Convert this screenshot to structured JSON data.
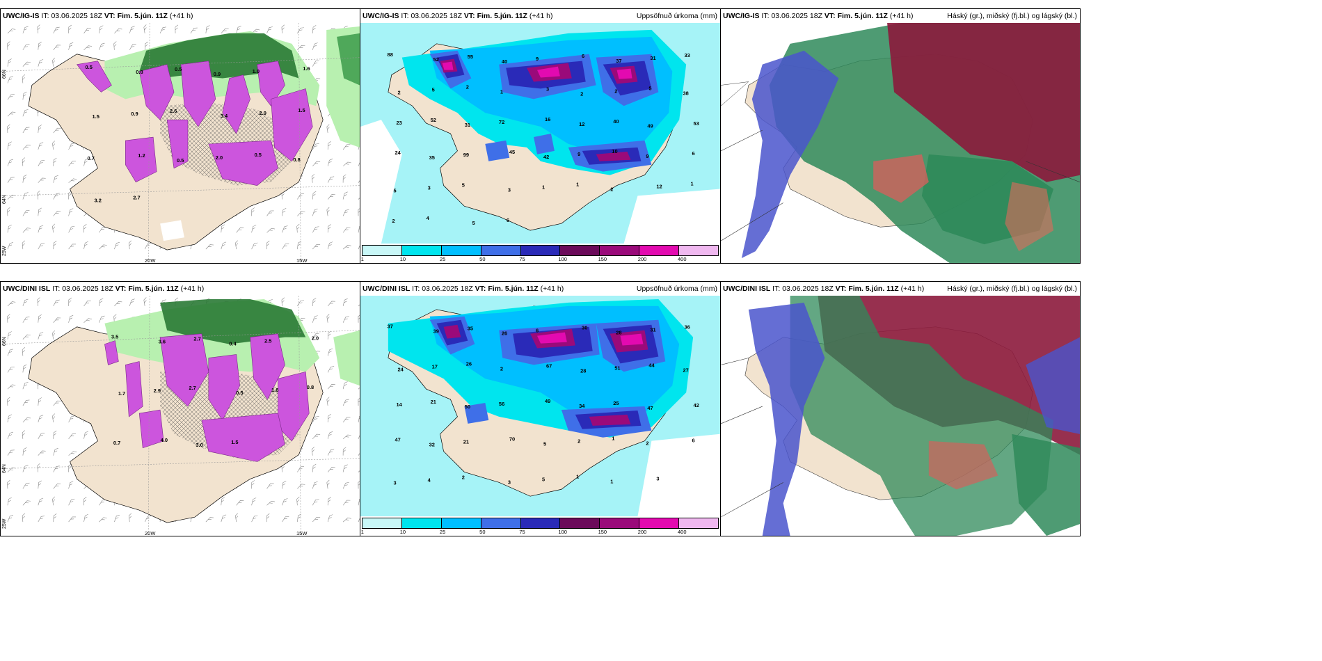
{
  "panels": {
    "p1": {
      "model": "UWC/IG-IS",
      "it_label": "IT:",
      "it": "03.06.2025 18Z",
      "vt_label": "VT:",
      "vt": "Fim. 5.jún. 11Z",
      "lead": "(+41 h)",
      "right_title": ""
    },
    "p2": {
      "model": "UWC/IG-IS",
      "it_label": "IT:",
      "it": "03.06.2025 18Z",
      "vt_label": "VT:",
      "vt": "Fim. 5.jún. 11Z",
      "lead": "(+41 h)",
      "right_title": "Uppsöfnuð úrkoma (mm)"
    },
    "p3": {
      "model": "UWC/IG-IS",
      "it_label": "IT:",
      "it": "03.06.2025 18Z",
      "vt_label": "VT:",
      "vt": "Fim. 5.jún. 11Z",
      "lead": "(+41 h)",
      "right_title": "Háský (gr.), miðský (fj.bl.) og lágský (bl.)"
    },
    "p4": {
      "model": "UWC/DINI ISL",
      "it_label": "IT:",
      "it": "03.06.2025 18Z",
      "vt_label": "VT:",
      "vt": "Fim. 5.jún. 11Z",
      "lead": "(+41 h)",
      "right_title": ""
    },
    "p5": {
      "model": "UWC/DINI ISL",
      "it_label": "IT:",
      "it": "03.06.2025 18Z",
      "vt_label": "VT:",
      "vt": "Fim. 5.jún. 11Z",
      "lead": "(+41 h)",
      "right_title": "Uppsöfnuð úrkoma (mm)"
    },
    "p6": {
      "model": "UWC/DINI ISL",
      "it_label": "IT:",
      "it": "03.06.2025 18Z",
      "vt_label": "VT:",
      "vt": "Fim. 5.jún. 11Z",
      "lead": "(+41 h)",
      "right_title": "Háský (gr.), miðský (fj.bl.) og lágský (bl.)"
    }
  },
  "axes": {
    "lat_66": "66N",
    "lat_64": "64N",
    "lon_25": "25W",
    "lon_20": "20W",
    "lon_15": "15W"
  },
  "colorbar": {
    "ticks": [
      "1",
      "10",
      "25",
      "50",
      "75",
      "100",
      "150",
      "200",
      "400"
    ],
    "colors": [
      "#c8f7f7",
      "#00e5ee",
      "#00bfff",
      "#3f6fe8",
      "#2a2ab8",
      "#6b0a5a",
      "#9a0a7a",
      "#e30ab0",
      "#f0b8f0"
    ]
  },
  "colors": {
    "land": "#f2e3cf",
    "sea_precip": "#a6f3f7",
    "snow_green_light": "#b8f0b0",
    "snow_green_dark": "#1e6e2a",
    "magenta": "#cc55dd",
    "high_cloud": "#2f8a5a",
    "mid_cloud": "#8c1a3c",
    "low_cloud": "#4a55cc"
  },
  "p1_labels": [
    "0.5",
    "0.8",
    "0.5",
    "0.9",
    "1.0",
    "1.6",
    "1.5",
    "0.9",
    "2.6",
    "3.4",
    "2.9",
    "1.5",
    "0.7",
    "1.2",
    "0.5",
    "2.0",
    "0.5",
    "0.8",
    "3.2",
    "2.7"
  ],
  "p4_labels": [
    "3.5",
    "3.6",
    "2.7",
    "0.4",
    "2.5",
    "2.0",
    "1.7",
    "2.9",
    "2.7",
    "0.5",
    "1.6",
    "0.8",
    "0.7",
    "4.0",
    "3.0",
    "1.5"
  ],
  "p2_labels": [
    "88",
    "52",
    "55",
    "40",
    "9",
    "6",
    "37",
    "31",
    "33",
    "2",
    "5",
    "2",
    "1",
    "3",
    "2",
    "2",
    "5",
    "38",
    "23",
    "52",
    "31",
    "72",
    "16",
    "12",
    "40",
    "49",
    "53",
    "24",
    "35",
    "99",
    "45",
    "42",
    "9",
    "10",
    "9",
    "6",
    "5",
    "3",
    "5",
    "3",
    "1",
    "1",
    "2",
    "12",
    "1",
    "2",
    "4",
    "5",
    "6"
  ],
  "p5_labels": [
    "37",
    "39",
    "35",
    "26",
    "6",
    "30",
    "28",
    "31",
    "36",
    "24",
    "17",
    "26",
    "2",
    "67",
    "28",
    "51",
    "44",
    "27",
    "14",
    "21",
    "50",
    "56",
    "49",
    "34",
    "25",
    "47",
    "42",
    "47",
    "32",
    "21",
    "70",
    "5",
    "2",
    "1",
    "2",
    "6",
    "3",
    "4",
    "2",
    "3",
    "5",
    "1",
    "1",
    "3"
  ]
}
